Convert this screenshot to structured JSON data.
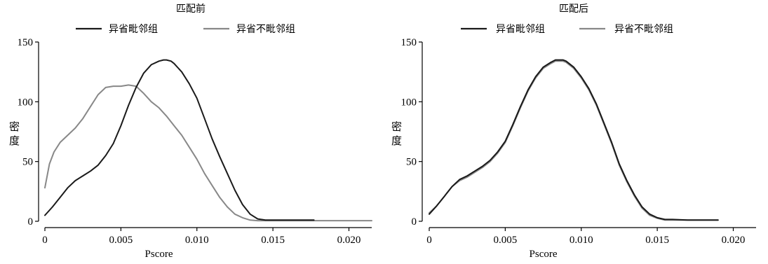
{
  "chart_data": [
    {
      "type": "line",
      "title": "匹配前",
      "xlabel": "Pscore",
      "ylabel": "密度",
      "xlim": [
        0,
        0.0215
      ],
      "ylim": [
        0,
        150
      ],
      "xticks": [
        0,
        0.005,
        0.01,
        0.015,
        0.02
      ],
      "xtick_labels": [
        "0",
        "0.005",
        "0.010",
        "0.015",
        "0.020"
      ],
      "yticks": [
        0,
        50,
        100,
        150
      ],
      "ytick_labels": [
        "0",
        "50",
        "100",
        "150"
      ],
      "legend_position": "top-center",
      "series": [
        {
          "name": "异省毗邻组",
          "color": "#1a1a1a",
          "x": [
            0,
            0.0005,
            0.001,
            0.0015,
            0.002,
            0.0025,
            0.003,
            0.0035,
            0.004,
            0.0045,
            0.005,
            0.0055,
            0.006,
            0.0065,
            0.007,
            0.0075,
            0.0078,
            0.008,
            0.0083,
            0.0085,
            0.009,
            0.0095,
            0.01,
            0.0105,
            0.011,
            0.0115,
            0.012,
            0.0125,
            0.013,
            0.0135,
            0.014,
            0.0145,
            0.015,
            0.016,
            0.017,
            0.0177
          ],
          "y": [
            5,
            12,
            20,
            28,
            34,
            38,
            42,
            47,
            55,
            65,
            80,
            97,
            112,
            124,
            131,
            134,
            135,
            135,
            134,
            132,
            125,
            115,
            103,
            86,
            69,
            54,
            40,
            26,
            14,
            6,
            2,
            1,
            1,
            1,
            1,
            1
          ]
        },
        {
          "name": "异省不毗邻组",
          "color": "#888888",
          "x": [
            0,
            0.0003,
            0.0006,
            0.001,
            0.0015,
            0.002,
            0.0025,
            0.003,
            0.0035,
            0.004,
            0.0045,
            0.005,
            0.0055,
            0.006,
            0.0065,
            0.007,
            0.0075,
            0.008,
            0.0085,
            0.009,
            0.0095,
            0.01,
            0.0105,
            0.011,
            0.0115,
            0.012,
            0.0125,
            0.013,
            0.0135,
            0.014,
            0.015,
            0.016,
            0.018,
            0.02,
            0.0215
          ],
          "y": [
            28,
            48,
            58,
            66,
            72,
            78,
            86,
            96,
            106,
            112,
            113,
            113,
            114,
            113,
            107,
            100,
            95,
            88,
            80,
            72,
            62,
            52,
            40,
            30,
            20,
            12,
            6,
            3,
            1,
            0.5,
            0.5,
            0.5,
            0.5,
            0.5,
            0.5
          ]
        }
      ]
    },
    {
      "type": "line",
      "title": "匹配后",
      "xlabel": "Pscore",
      "ylabel": "密度",
      "xlim": [
        0,
        0.0215
      ],
      "ylim": [
        0,
        150
      ],
      "xticks": [
        0,
        0.005,
        0.01,
        0.015,
        0.02
      ],
      "xtick_labels": [
        "0",
        "0.005",
        "0.010",
        "0.015",
        "0.020"
      ],
      "yticks": [
        0,
        50,
        100,
        150
      ],
      "ytick_labels": [
        "0",
        "50",
        "100",
        "150"
      ],
      "legend_position": "top-center",
      "series": [
        {
          "name": "异省毗邻组",
          "color": "#1a1a1a",
          "x": [
            0,
            0.0005,
            0.001,
            0.0015,
            0.002,
            0.0025,
            0.003,
            0.0035,
            0.004,
            0.0045,
            0.005,
            0.0055,
            0.006,
            0.0065,
            0.007,
            0.0075,
            0.008,
            0.0083,
            0.0085,
            0.0088,
            0.009,
            0.0095,
            0.01,
            0.0105,
            0.011,
            0.0115,
            0.012,
            0.0125,
            0.013,
            0.0135,
            0.014,
            0.0145,
            0.015,
            0.0155,
            0.016,
            0.017,
            0.018,
            0.019
          ],
          "y": [
            6,
            13,
            21,
            29,
            35,
            38,
            42,
            46,
            51,
            58,
            67,
            81,
            96,
            110,
            121,
            129,
            133,
            135,
            135,
            135,
            134,
            129,
            121,
            111,
            98,
            82,
            66,
            48,
            34,
            22,
            12,
            6,
            3,
            1.5,
            1.5,
            1,
            1,
            1
          ]
        },
        {
          "name": "异省不毗邻组",
          "color": "#888888",
          "x": [
            0,
            0.0005,
            0.001,
            0.0015,
            0.002,
            0.0025,
            0.003,
            0.0035,
            0.004,
            0.0045,
            0.005,
            0.0055,
            0.006,
            0.0065,
            0.007,
            0.0075,
            0.008,
            0.0083,
            0.0085,
            0.0088,
            0.009,
            0.0095,
            0.01,
            0.0105,
            0.011,
            0.0115,
            0.012,
            0.0125,
            0.013,
            0.0135,
            0.014,
            0.0145,
            0.015,
            0.0155,
            0.016,
            0.017,
            0.018,
            0.019
          ],
          "y": [
            7,
            13,
            21,
            29,
            34,
            37,
            41,
            45,
            50,
            57,
            66,
            80,
            95,
            109,
            120,
            128,
            132,
            134,
            134,
            134,
            133,
            128,
            120,
            110,
            97,
            81,
            65,
            47,
            33,
            21,
            11,
            5,
            2.5,
            1,
            1,
            1,
            1,
            1
          ]
        }
      ]
    }
  ]
}
